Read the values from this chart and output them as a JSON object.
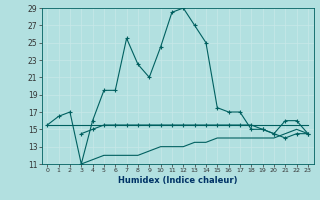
{
  "xlabel": "Humidex (Indice chaleur)",
  "background_color": "#b2e0e0",
  "grid_color": "#c8e8e8",
  "line_color": "#006060",
  "xlim": [
    -0.5,
    23.5
  ],
  "ylim": [
    11,
    29
  ],
  "xticks": [
    0,
    1,
    2,
    3,
    4,
    5,
    6,
    7,
    8,
    9,
    10,
    11,
    12,
    13,
    14,
    15,
    16,
    17,
    18,
    19,
    20,
    21,
    22,
    23
  ],
  "yticks": [
    11,
    13,
    15,
    17,
    19,
    21,
    23,
    25,
    27,
    29
  ],
  "series": [
    {
      "x": [
        0,
        1,
        2,
        3,
        4,
        5,
        6,
        7,
        8,
        9,
        10,
        11,
        12,
        13,
        14,
        15,
        16,
        17,
        18,
        19,
        20,
        21,
        22,
        23
      ],
      "y": [
        15.5,
        16.5,
        17.0,
        11.0,
        16.0,
        19.5,
        19.5,
        25.5,
        22.5,
        21.0,
        24.5,
        28.5,
        29.0,
        27.0,
        25.0,
        17.5,
        17.0,
        17.0,
        15.0,
        15.0,
        14.5,
        16.0,
        16.0,
        14.5
      ],
      "marker": "+"
    },
    {
      "x": [
        0,
        1,
        2,
        3,
        4,
        5,
        6,
        7,
        8,
        9,
        10,
        11,
        12,
        13,
        14,
        15,
        16,
        17,
        18,
        19,
        20,
        21,
        22,
        23
      ],
      "y": [
        15.5,
        15.5,
        15.5,
        15.5,
        15.5,
        15.5,
        15.5,
        15.5,
        15.5,
        15.5,
        15.5,
        15.5,
        15.5,
        15.5,
        15.5,
        15.5,
        15.5,
        15.5,
        15.5,
        15.5,
        15.5,
        15.5,
        15.5,
        15.5
      ],
      "marker": null
    },
    {
      "x": [
        3,
        4,
        5,
        6,
        7,
        8,
        9,
        10,
        11,
        12,
        13,
        14,
        15,
        16,
        17,
        18,
        19,
        20,
        21,
        22,
        23
      ],
      "y": [
        14.5,
        15.0,
        15.5,
        15.5,
        15.5,
        15.5,
        15.5,
        15.5,
        15.5,
        15.5,
        15.5,
        15.5,
        15.5,
        15.5,
        15.5,
        15.5,
        15.0,
        14.5,
        14.0,
        14.5,
        14.5
      ],
      "marker": "+"
    },
    {
      "x": [
        3,
        4,
        5,
        6,
        7,
        8,
        9,
        10,
        11,
        12,
        13,
        14,
        15,
        16,
        17,
        18,
        19,
        20,
        21,
        22,
        23
      ],
      "y": [
        11.0,
        11.5,
        12.0,
        12.0,
        12.0,
        12.0,
        12.5,
        13.0,
        13.0,
        13.0,
        13.5,
        13.5,
        14.0,
        14.0,
        14.0,
        14.0,
        14.0,
        14.0,
        14.5,
        15.0,
        14.5
      ],
      "marker": null
    }
  ]
}
